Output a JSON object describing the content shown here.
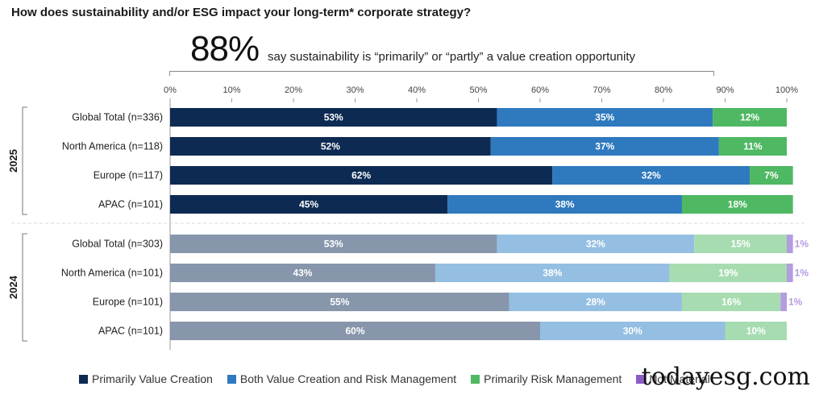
{
  "title": "How does sustainability and/or ESG impact your long-term* corporate strategy?",
  "headline": {
    "value": "88%",
    "text": "say sustainability is “primarily” or “partly” a value creation opportunity"
  },
  "watermark": "todayesg.com",
  "chart_data": {
    "type": "bar",
    "orientation": "horizontal-stacked-100",
    "x_ticks": [
      "0%",
      "10%",
      "20%",
      "30%",
      "40%",
      "50%",
      "60%",
      "70%",
      "80%",
      "90%",
      "100%"
    ],
    "xlim": [
      0,
      100
    ],
    "legend": [
      {
        "name": "Primarily Value Creation",
        "color": "#0d2b52"
      },
      {
        "name": "Both Value Creation and Risk Management",
        "color": "#2f79be"
      },
      {
        "name": "Primarily Risk Management",
        "color": "#4fb862"
      },
      {
        "name": "Not Material",
        "color": "#8b5cc7"
      }
    ],
    "groups": [
      {
        "label": "2025",
        "colors": [
          "#0d2b52",
          "#2f79be",
          "#4fb862",
          "#8b5cc7"
        ],
        "rows": [
          {
            "label": "Global Total (n=336)",
            "values": [
              53,
              35,
              12,
              0
            ],
            "labels": [
              "53%",
              "35%",
              "12%",
              ""
            ]
          },
          {
            "label": "North America (n=118)",
            "values": [
              52,
              37,
              11,
              0
            ],
            "labels": [
              "52%",
              "37%",
              "11%",
              ""
            ]
          },
          {
            "label": "Europe (n=117)",
            "values": [
              62,
              32,
              7,
              0
            ],
            "labels": [
              "62%",
              "32%",
              "7%",
              ""
            ]
          },
          {
            "label": "APAC (n=101)",
            "values": [
              45,
              38,
              18,
              0
            ],
            "labels": [
              "45%",
              "38%",
              "18%",
              ""
            ]
          }
        ]
      },
      {
        "label": "2024",
        "colors": [
          "#8796ab",
          "#94bfe2",
          "#a7dcb1",
          "#b59be0"
        ],
        "rows": [
          {
            "label": "Global Total (n=303)",
            "values": [
              53,
              32,
              15,
              1
            ],
            "labels": [
              "53%",
              "32%",
              "15%",
              "1%"
            ]
          },
          {
            "label": "North America (n=101)",
            "values": [
              43,
              38,
              19,
              1
            ],
            "labels": [
              "43%",
              "38%",
              "19%",
              "1%"
            ]
          },
          {
            "label": "Europe (n=101)",
            "values": [
              55,
              28,
              16,
              1
            ],
            "labels": [
              "55%",
              "28%",
              "16%",
              "1%"
            ]
          },
          {
            "label": "APAC (n=101)",
            "values": [
              60,
              30,
              10,
              0
            ],
            "labels": [
              "60%",
              "30%",
              "10%",
              ""
            ]
          }
        ]
      }
    ]
  }
}
